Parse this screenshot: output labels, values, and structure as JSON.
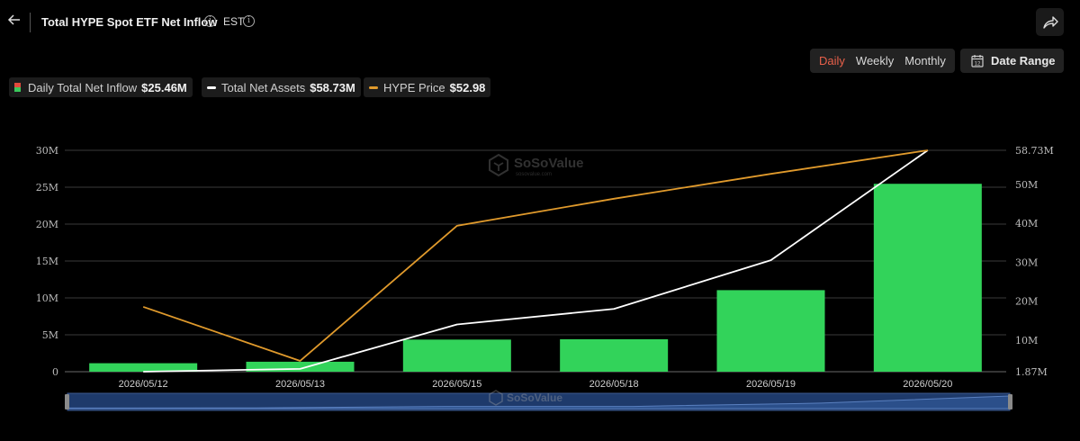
{
  "header": {
    "title": "Total HYPE Spot ETF Net Inflow",
    "timezone": "EST"
  },
  "period_tabs": [
    {
      "label": "Daily",
      "active": true
    },
    {
      "label": "Weekly",
      "active": false
    },
    {
      "label": "Monthly",
      "active": false
    }
  ],
  "date_range_label": "Date Range",
  "legend": [
    {
      "label": "Daily Total Net Inflow",
      "value": "$25.46M"
    },
    {
      "label": "Total Net Assets",
      "value": "$58.73M"
    },
    {
      "label": "HYPE Price",
      "value": "$52.98"
    }
  ],
  "watermark": {
    "brand": "SoSoValue",
    "site": "sosovalue.com"
  },
  "colors": {
    "bar": "#32d35a",
    "bar_negative": "#e24a3c",
    "net_assets_line": "#ffffff",
    "price_line": "#e09a2c",
    "active_tab": "#e8604a",
    "scroller": "#1e3a6b"
  },
  "chart_data": {
    "type": "bar",
    "title": "Total HYPE Spot ETF Net Inflow",
    "categories": [
      "2026/05/12",
      "2026/05/13",
      "2026/05/15",
      "2026/05/18",
      "2026/05/19",
      "2026/05/20"
    ],
    "series": [
      {
        "name": "Daily Total Net Inflow",
        "type": "bar",
        "axis": "left",
        "values": [
          1.15,
          1.35,
          4.35,
          4.4,
          11.05,
          25.46
        ]
      },
      {
        "name": "Total Net Assets",
        "type": "line",
        "axis": "right",
        "values": [
          1.87,
          2.6,
          14.0,
          18.0,
          30.5,
          58.73
        ]
      },
      {
        "name": "HYPE Price",
        "type": "line",
        "axis": "right_price",
        "values": [
          38.5,
          33.5,
          46.0,
          48.5,
          50.8,
          52.98
        ]
      }
    ],
    "left_axis": {
      "ticks": [
        "0",
        "5M",
        "10M",
        "15M",
        "20M",
        "25M",
        "30M"
      ],
      "tick_values": [
        0,
        5,
        10,
        15,
        20,
        25,
        30
      ],
      "range": [
        0,
        30
      ]
    },
    "right_axis": {
      "ticks": [
        "1.87M",
        "10M",
        "20M",
        "30M",
        "40M",
        "50M",
        "58.73M"
      ],
      "tick_values": [
        1.87,
        10,
        20,
        30,
        40,
        50,
        58.73
      ],
      "range": [
        1.87,
        58.73
      ]
    },
    "price_axis_range": [
      32.5,
      52.98
    ],
    "grid": true
  }
}
